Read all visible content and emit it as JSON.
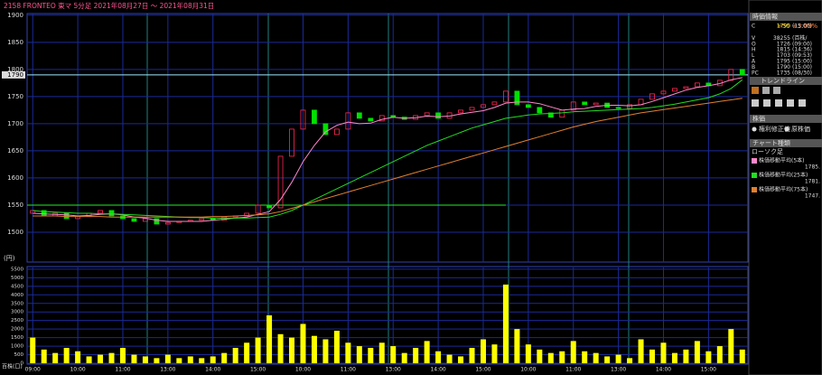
{
  "chart_data": {
    "type": "candlestick",
    "title": "2158 FRONTEO 東マ 5分足 2021年08月27日 〜 2021年08月31日",
    "categories": [
      "09:00",
      null,
      null,
      null,
      "10:00",
      null,
      null,
      null,
      "11:00",
      null,
      null,
      null,
      "13:00",
      null,
      null,
      null,
      "14:00",
      null,
      null,
      null,
      "15:00",
      null,
      null,
      null,
      "10:00",
      null,
      null,
      null,
      "11:00",
      null,
      null,
      null,
      "13:00",
      null,
      null,
      null,
      "14:00",
      null,
      null,
      null,
      "15:00",
      null,
      null,
      null,
      "10:00",
      null,
      null,
      null,
      "11:00",
      null,
      null,
      null,
      "13:00",
      null,
      null,
      null,
      "14:00",
      null,
      null,
      null,
      "15:00",
      null,
      null,
      null
    ],
    "open": [
      1535,
      1540,
      1530,
      1535,
      1525,
      1530,
      1535,
      1540,
      1530,
      1525,
      1520,
      1525,
      1515,
      1518,
      1520,
      1522,
      1525,
      1522,
      1528,
      1530,
      1535,
      1550,
      1545,
      1640,
      1690,
      1725,
      1700,
      1680,
      1690,
      1720,
      1710,
      1705,
      1715,
      1712,
      1708,
      1715,
      1720,
      1710,
      1720,
      1725,
      1730,
      1735,
      1740,
      1760,
      1735,
      1730,
      1720,
      1712,
      1725,
      1740,
      1735,
      1738,
      1730,
      1728,
      1735,
      1745,
      1755,
      1760,
      1765,
      1768,
      1775,
      1770,
      1780,
      1800
    ],
    "close": [
      1540,
      1530,
      1535,
      1525,
      1530,
      1535,
      1540,
      1530,
      1525,
      1520,
      1525,
      1515,
      1518,
      1520,
      1522,
      1525,
      1522,
      1528,
      1530,
      1535,
      1550,
      1545,
      1640,
      1690,
      1725,
      1700,
      1680,
      1690,
      1720,
      1710,
      1705,
      1715,
      1712,
      1708,
      1715,
      1720,
      1710,
      1720,
      1725,
      1730,
      1735,
      1740,
      1760,
      1735,
      1730,
      1720,
      1712,
      1725,
      1740,
      1735,
      1738,
      1730,
      1728,
      1735,
      1745,
      1755,
      1760,
      1765,
      1768,
      1775,
      1770,
      1780,
      1800,
      1790
    ],
    "up_color": "#ff2a55",
    "down_color": "#00e000",
    "series": [
      {
        "name": "株価移動平均(5本)",
        "color": "#ff88cc",
        "value_label": "1785.",
        "values": [
          1535,
          1534,
          1533,
          1532,
          1530,
          1531,
          1533,
          1534,
          1532,
          1528,
          1526,
          1522,
          1520,
          1520,
          1520,
          1520,
          1522,
          1524,
          1526,
          1528,
          1533,
          1538,
          1560,
          1592,
          1630,
          1660,
          1685,
          1697,
          1703,
          1700,
          1701,
          1708,
          1712,
          1710,
          1711,
          1714,
          1713,
          1714,
          1718,
          1721,
          1724,
          1730,
          1738,
          1740,
          1740,
          1737,
          1731,
          1725,
          1727,
          1728,
          1732,
          1734,
          1734,
          1733,
          1735,
          1741,
          1748,
          1755,
          1762,
          1767,
          1770,
          1774,
          1781,
          1785
        ]
      },
      {
        "name": "株価移動平均(25本)",
        "color": "#22dd22",
        "value_label": "1781.",
        "values": [
          1540,
          1538,
          1537,
          1536,
          1535,
          1535,
          1534,
          1534,
          1533,
          1532,
          1531,
          1530,
          1529,
          1528,
          1527,
          1527,
          1526,
          1526,
          1526,
          1526,
          1527,
          1528,
          1533,
          1540,
          1550,
          1560,
          1570,
          1580,
          1590,
          1600,
          1610,
          1620,
          1630,
          1640,
          1650,
          1660,
          1668,
          1676,
          1684,
          1692,
          1698,
          1704,
          1710,
          1713,
          1716,
          1718,
          1719,
          1720,
          1722,
          1723,
          1724,
          1725,
          1726,
          1727,
          1728,
          1730,
          1733,
          1736,
          1740,
          1744,
          1748,
          1755,
          1765,
          1781
        ]
      },
      {
        "name": "株価移動平均(75本)",
        "color": "#e08030",
        "value_label": "1747.",
        "values": [
          1530,
          1530,
          1530,
          1529,
          1529,
          1529,
          1529,
          1528,
          1528,
          1528,
          1528,
          1528,
          1528,
          1528,
          1528,
          1528,
          1529,
          1529,
          1530,
          1531,
          1532,
          1534,
          1538,
          1544,
          1550,
          1556,
          1562,
          1568,
          1574,
          1580,
          1586,
          1592,
          1598,
          1604,
          1610,
          1616,
          1622,
          1628,
          1634,
          1640,
          1646,
          1652,
          1658,
          1664,
          1670,
          1676,
          1682,
          1688,
          1694,
          1699,
          1704,
          1708,
          1712,
          1716,
          1720,
          1723,
          1726,
          1729,
          1732,
          1735,
          1738,
          1741,
          1744,
          1747
        ]
      }
    ],
    "ylim": [
      1445,
      1903
    ],
    "yticks": [
      1500,
      1550,
      1600,
      1650,
      1700,
      1750,
      1800,
      1850,
      1900
    ],
    "ylabel": "(円)",
    "current_price": 1790,
    "current_color": "#9fe8ff",
    "trendline": {
      "value": 1550,
      "color": "#22ee22"
    },
    "grid": true,
    "volume": {
      "color": "#ffff00",
      "label": "百株(口)",
      "ylim": [
        0,
        5600
      ],
      "yticks": [
        0,
        500,
        1000,
        1500,
        2000,
        2500,
        3000,
        3500,
        4000,
        4500,
        5000,
        5500
      ],
      "values": [
        1500,
        800,
        600,
        900,
        700,
        400,
        500,
        600,
        900,
        500,
        400,
        300,
        500,
        300,
        400,
        300,
        400,
        600,
        900,
        1200,
        1500,
        2800,
        1700,
        1500,
        2300,
        1600,
        1400,
        1900,
        1200,
        1000,
        900,
        1200,
        1000,
        600,
        900,
        1300,
        700,
        500,
        400,
        900,
        1400,
        1100,
        4600,
        2000,
        1100,
        800,
        600,
        700,
        1300,
        700,
        600,
        400,
        500,
        300,
        1400,
        800,
        1200,
        600,
        800,
        1300,
        700,
        1000,
        2000,
        800
      ]
    }
  },
  "side_panel": {
    "title": "時価情報",
    "rows": [
      [
        "C",
        "1790",
        "(15:00)"
      ],
      [
        "V",
        "38255",
        "(百株/"
      ],
      [
        "O",
        "1726",
        "(09:00)"
      ],
      [
        "H",
        "1815",
        "(14:36)"
      ],
      [
        "L",
        "1703",
        "(09:53)"
      ],
      [
        "A",
        "1795",
        "(15:00)"
      ],
      [
        "B",
        "1790",
        "(15:00)"
      ],
      [
        "PC",
        "1735",
        "(08/30)"
      ]
    ],
    "change": "+55 +3.09%",
    "trend_title": "トレンドライン",
    "price_title": "株価",
    "radio": [
      "権利修正値",
      "原株価"
    ],
    "chart_kind_title": "チャート種類",
    "chart_kind": "ローソク足"
  }
}
